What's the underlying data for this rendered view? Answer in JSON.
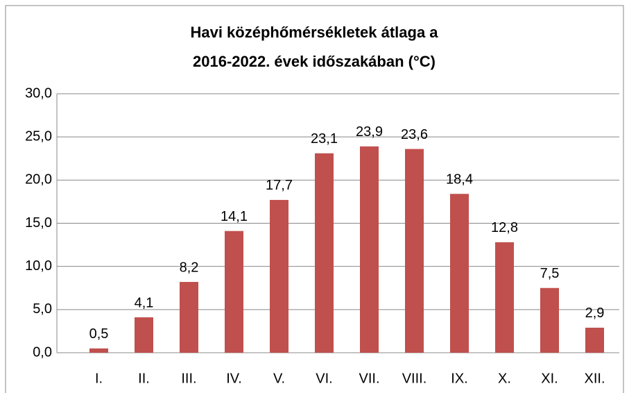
{
  "chart_data": {
    "type": "bar",
    "title": [
      "Havi középhőmérsékletek átlaga a",
      "2016-2022. évek időszakában (°C)"
    ],
    "categories": [
      "I.",
      "II.",
      "III.",
      "IV.",
      "V.",
      "VI.",
      "VII.",
      "VIII.",
      "IX.",
      "X.",
      "XI.",
      "XII."
    ],
    "values": [
      0.5,
      4.1,
      8.2,
      14.1,
      17.7,
      23.1,
      23.9,
      23.6,
      18.4,
      12.8,
      7.5,
      2.9
    ],
    "value_labels": [
      "0,5",
      "4,1",
      "8,2",
      "14,1",
      "17,7",
      "23,1",
      "23,9",
      "23,6",
      "18,4",
      "12,8",
      "7,5",
      "2,9"
    ],
    "color": "#c0504d",
    "ylim": [
      0,
      30
    ],
    "yticks": [
      {
        "value": 0,
        "label": "0,0"
      },
      {
        "value": 5,
        "label": "5,0"
      },
      {
        "value": 10,
        "label": "10,0"
      },
      {
        "value": 15,
        "label": "15,0"
      },
      {
        "value": 20,
        "label": "20,0"
      },
      {
        "value": 25,
        "label": "25,0"
      },
      {
        "value": 30,
        "label": "30,0"
      }
    ],
    "grid": true
  }
}
